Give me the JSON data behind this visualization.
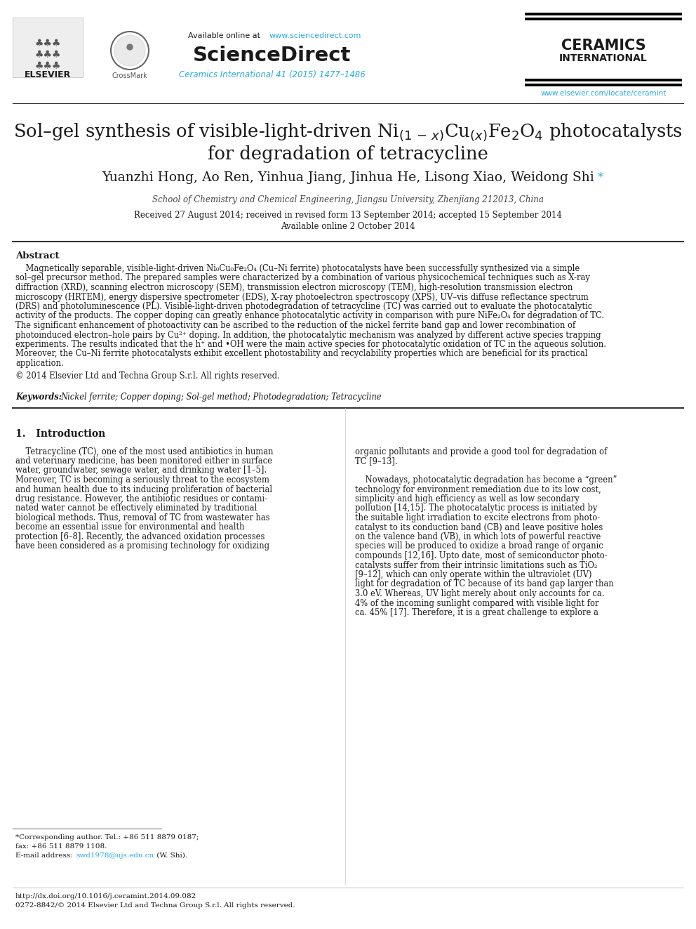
{
  "bg_color": "#ffffff",
  "header": {
    "available_online": "Available online at ",
    "available_online_url": "www.sciencedirect.com",
    "sciencedirect": "ScienceDirect",
    "journal_ref": "Ceramics International 41 (2015) 1477–1486",
    "ceramics_international_1": "CERAMICS",
    "ceramics_international_2": "INTERNATIONAL",
    "elsevier": "ELSEVIER",
    "crossmark": "CrossMark",
    "journal_url": "www.elsevier.com/locate/ceramint"
  },
  "title_line1": "Sol–gel synthesis of visible-light-driven Ni$_{(1\\,-\\,x)}$Cu$_{(x)}$Fe$_2$O$_4$ photocatalysts",
  "title_line2": "for degradation of tetracycline",
  "authors": "Yuanzhi Hong, Ao Ren, Yinhua Jiang, Jinhua He, Lisong Xiao, Weidong Shi",
  "affiliation": "School of Chemistry and Chemical Engineering, Jiangsu University, Zhenjiang 212013, China",
  "dates": "Received 27 August 2014; received in revised form 13 September 2014; accepted 15 September 2014",
  "available": "Available online 2 October 2014",
  "abstract_heading": "Abstract",
  "abstract_lines": [
    "    Magnetically separable, visible-light-driven Ni₀Cu₀Fe₂O₄ (Cu–Ni ferrite) photocatalysts have been successfully synthesized via a simple",
    "sol–gel precursor method. The prepared samples were characterized by a combination of various physicochemical techniques such as X-ray",
    "diffraction (XRD), scanning electron microscopy (SEM), transmission electron microscopy (TEM), high-resolution transmission electron",
    "microscopy (HRTEM), energy dispersive spectrometer (EDS), X-ray photoelectron spectroscopy (XPS), UV–vis diffuse reflectance spectrum",
    "(DRS) and photoluminescence (PL). Visible-light-driven photodegradation of tetracycline (TC) was carried out to evaluate the photocatalytic",
    "activity of the products. The copper doping can greatly enhance photocatalytic activity in comparison with pure NiFe₂O₄ for degradation of TC.",
    "The significant enhancement of photoactivity can be ascribed to the reduction of the nickel ferrite band gap and lower recombination of",
    "photoinduced electron–hole pairs by Cu²⁺ doping. In addition, the photocatalytic mechanism was analyzed by different active species trapping",
    "experiments. The results indicated that the h⁺ and •OH were the main active species for photocatalytic oxidation of TC in the aqueous solution.",
    "Moreover, the Cu–Ni ferrite photocatalysts exhibit excellent photostability and recyclability properties which are beneficial for its practical",
    "application."
  ],
  "copyright": "© 2014 Elsevier Ltd and Techna Group S.r.l. All rights reserved.",
  "keywords_label": "Keywords:",
  "keywords": "Nickel ferrite; Copper doping; Sol-gel method; Photodegradation; Tetracycline",
  "section1_title": "1.   Introduction",
  "intro_col1_lines": [
    "    Tetracycline (TC), one of the most used antibiotics in human",
    "and veterinary medicine, has been monitored either in surface",
    "water, groundwater, sewage water, and drinking water [1–5].",
    "Moreover, TC is becoming a seriously threat to the ecosystem",
    "and human health due to its inducing proliferation of bacterial",
    "drug resistance. However, the antibiotic residues or contami-",
    "nated water cannot be effectively eliminated by traditional",
    "biological methods. Thus, removal of TC from wastewater has",
    "become an essential issue for environmental and health",
    "protection [6–8]. Recently, the advanced oxidation processes",
    "have been considered as a promising technology for oxidizing"
  ],
  "intro_col2_lines": [
    "organic pollutants and provide a good tool for degradation of",
    "TC [9–13].",
    "",
    "    Nowadays, photocatalytic degradation has become a “green”",
    "technology for environment remediation due to its low cost,",
    "simplicity and high efficiency as well as low secondary",
    "pollution [14,15]. The photocatalytic process is initiated by",
    "the suitable light irradiation to excite electrons from photo-",
    "catalyst to its conduction band (CB) and leave positive holes",
    "on the valence band (VB), in which lots of powerful reactive",
    "species will be produced to oxidize a broad range of organic",
    "compounds [12,16]. Upto date, most of semiconductor photo-",
    "catalysts suffer from their intrinsic limitations such as TiO₂",
    "[9–12], which can only operate within the ultraviolet (UV)",
    "light for degradation of TC because of its band gap larger than",
    "3.0 eV. Whereas, UV light merely about only accounts for ca.",
    "4% of the incoming sunlight compared with visible light for",
    "ca. 45% [17]. Therefore, it is a great challenge to explore a"
  ],
  "footnote1": "*Corresponding author. Tel.: +86 511 8879 0187;",
  "footnote2": "fax: +86 511 8879 1108.",
  "footnote3a": "E-mail address: ",
  "footnote3b": "swd1978@ujs.edu.cn",
  "footnote3c": " (W. Shi).",
  "doi": "http://dx.doi.org/10.1016/j.ceramint.2014.09.082",
  "issn": "0272-8842/© 2014 Elsevier Ltd and Techna Group S.r.l. All rights reserved.",
  "colors": {
    "black": "#000000",
    "blue_link": "#29abe2",
    "dark_text": "#1a1a1a",
    "gray_text": "#444444",
    "light_gray": "#888888",
    "rule_color": "#333333"
  }
}
